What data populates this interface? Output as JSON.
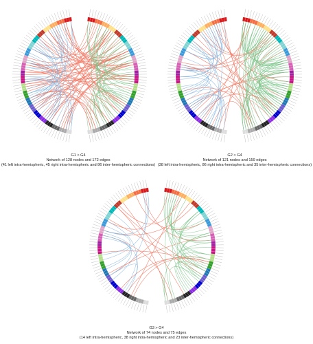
{
  "panels": [
    {
      "id": "g1",
      "comparison": "G1 > G4",
      "summary": "Network of 128 nodes and 172 edges",
      "detail": "(41 left intra-hemispheric, 45 right intra-hemispheric and 86 inter-hemispheric connections)",
      "nodes": 128,
      "edges": {
        "left_intra": 41,
        "right_intra": 45,
        "inter": 86
      }
    },
    {
      "id": "g2",
      "comparison": "G2 > G4",
      "summary": "Network of 121 nodes and 159 edges",
      "detail": "(38 left intra-hemispheric, 86 right intra-hemispheric and 35 inter-hemispheric connections)",
      "nodes": 121,
      "edges": {
        "left_intra": 38,
        "right_intra": 86,
        "inter": 35
      }
    },
    {
      "id": "g3",
      "comparison": "G3 > G4",
      "summary": "Network of 74 nodes and 75 edges",
      "detail": "(14 left intra-hemispheric, 38 right intra-hemispheric and 23 inter-hemispheric connections)",
      "nodes": 74,
      "edges": {
        "left_intra": 14,
        "right_intra": 38,
        "inter": 23
      }
    }
  ],
  "colors": {
    "inter_edge": "#f0705a",
    "left_edge": "#7fb2dd",
    "right_edge": "#7cc48a",
    "segments": [
      "#d7191c",
      "#f46d43",
      "#fdae61",
      "#fee08b",
      "#c0392b",
      "#00b7b7",
      "#7fd3d3",
      "#3a9ad9",
      "#e0a3c8",
      "#d65fb6",
      "#a020a0",
      "#c71585",
      "#b2df8a",
      "#33a02c",
      "#1f78b4",
      "#6a5acd",
      "#0000cd",
      "#8a2be2",
      "#222222",
      "#666666",
      "#aaaaaa",
      "#dddddd"
    ]
  }
}
